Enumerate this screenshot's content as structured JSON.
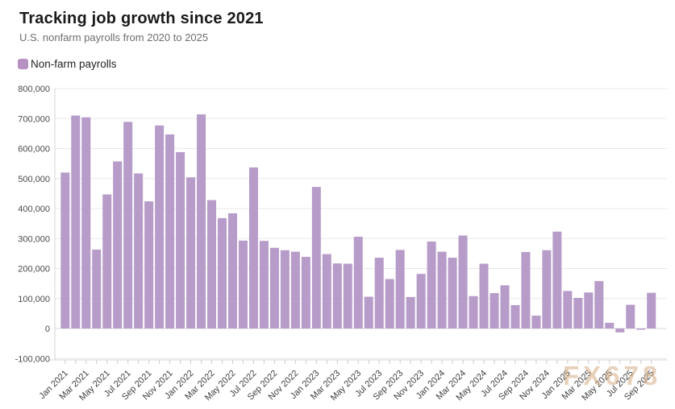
{
  "header": {
    "title": "Tracking job growth since 2021",
    "subtitle": "U.S. nonfarm payrolls from 2020 to 2025"
  },
  "legend": {
    "label": "Non-farm payrolls",
    "swatch_color": "#b592c2"
  },
  "watermark": "FX678",
  "chart_data": {
    "type": "bar",
    "title": "Tracking job growth since 2021",
    "subtitle": "U.S. nonfarm payrolls from 2020 to 2025",
    "series_name": "Non-farm payrolls",
    "bar_color": "#b79bc9",
    "grid": true,
    "legend_position": "top-left",
    "ylim": [
      -100000,
      800000
    ],
    "ytick_step": 100000,
    "ytick_labels": [
      "800,000",
      "700,000",
      "600,000",
      "500,000",
      "400,000",
      "300,000",
      "200,000",
      "100,000",
      "0",
      "-100,000"
    ],
    "ytick_values": [
      800000,
      700000,
      600000,
      500000,
      400000,
      300000,
      200000,
      100000,
      0,
      -100000
    ],
    "xtick_every": 2,
    "categories": [
      "Jan 2021",
      "Feb 2021",
      "Mar 2021",
      "Apr 2021",
      "May 2021",
      "Jun 2021",
      "Jul 2021",
      "Aug 2021",
      "Sep 2021",
      "Oct 2021",
      "Nov 2021",
      "Dec 2021",
      "Jan 2022",
      "Feb 2022",
      "Mar 2022",
      "Apr 2022",
      "May 2022",
      "Jun 2022",
      "Jul 2022",
      "Aug 2022",
      "Sep 2022",
      "Oct 2022",
      "Nov 2022",
      "Dec 2022",
      "Jan 2023",
      "Feb 2023",
      "Mar 2023",
      "Apr 2023",
      "May 2023",
      "Jun 2023",
      "Jul 2023",
      "Aug 2023",
      "Sep 2023",
      "Oct 2023",
      "Nov 2023",
      "Dec 2023",
      "Jan 2024",
      "Feb 2024",
      "Mar 2024",
      "Apr 2024",
      "May 2024",
      "Jun 2024",
      "Jul 2024",
      "Aug 2024",
      "Sep 2024",
      "Oct 2024",
      "Nov 2024",
      "Dec 2024",
      "Jan 2025",
      "Feb 2025",
      "Mar 2025",
      "Apr 2025",
      "May 2025",
      "Jun 2025",
      "Jul 2025",
      "Aug 2025",
      "Sep 2025"
    ],
    "values": [
      520000,
      710000,
      704000,
      263000,
      447000,
      557000,
      689000,
      517000,
      424000,
      677000,
      647000,
      588000,
      504000,
      714000,
      428000,
      368000,
      384000,
      293000,
      537000,
      292000,
      269000,
      261000,
      256000,
      239000,
      472000,
      248000,
      217000,
      216000,
      306000,
      106000,
      236000,
      165000,
      262000,
      105000,
      182000,
      290000,
      256000,
      236000,
      310000,
      108000,
      216000,
      118000,
      144000,
      78000,
      255000,
      43000,
      261000,
      323000,
      125000,
      102000,
      120000,
      158000,
      19000,
      -13000,
      79000,
      -4000,
      119000
    ],
    "colors": {
      "gridline": "#e8e8e8",
      "zero_line": "#dadada",
      "axis_line": "#d6d6d6",
      "tick": "#cccccc",
      "y_label": "#4a4a4a",
      "x_label": "#3f3f3f"
    }
  }
}
